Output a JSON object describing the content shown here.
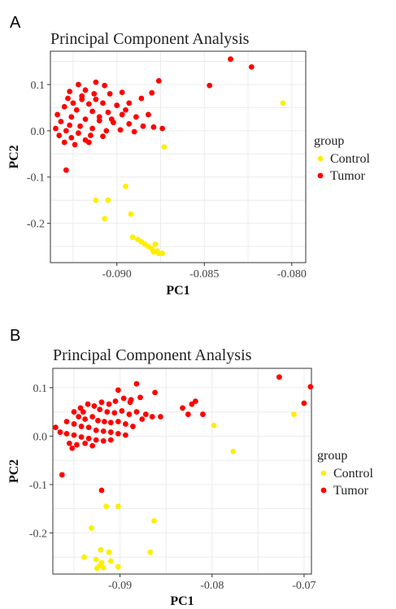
{
  "legend": {
    "title": "group",
    "entries": [
      {
        "label": "Control",
        "color": "#ffee00"
      },
      {
        "label": "Tumor",
        "color": "#ff0000"
      }
    ]
  },
  "chart_data": [
    {
      "panel": "A",
      "type": "scatter",
      "title": "Principal Component Analysis",
      "xlabel": "PC1",
      "ylabel": "PC2",
      "xlim": [
        -0.0938,
        -0.0792
      ],
      "ylim": [
        -0.285,
        0.172
      ],
      "xticks": [
        -0.09,
        -0.085,
        -0.08
      ],
      "xtick_labels": [
        "-0.090",
        "-0.085",
        "-0.080"
      ],
      "yticks": [
        0.1,
        0.0,
        -0.1,
        -0.2
      ],
      "ytick_labels": [
        "0.1",
        "0.0",
        "-0.1",
        "-0.2"
      ],
      "grid": true,
      "legend_position": "right",
      "series": [
        {
          "name": "Control",
          "color": "#ffee00",
          "points": [
            [
              -0.0805,
              0.06
            ],
            [
              -0.0873,
              -0.035
            ],
            [
              -0.0895,
              -0.12
            ],
            [
              -0.0912,
              -0.15
            ],
            [
              -0.0905,
              -0.15
            ],
            [
              -0.0907,
              -0.19
            ],
            [
              -0.0892,
              -0.18
            ],
            [
              -0.0891,
              -0.23
            ],
            [
              -0.0888,
              -0.235
            ],
            [
              -0.0886,
              -0.24
            ],
            [
              -0.0884,
              -0.245
            ],
            [
              -0.0882,
              -0.25
            ],
            [
              -0.0878,
              -0.245
            ],
            [
              -0.088,
              -0.255
            ],
            [
              -0.0877,
              -0.26
            ],
            [
              -0.0876,
              -0.265
            ],
            [
              -0.0874,
              -0.265
            ],
            [
              -0.0879,
              -0.262
            ]
          ]
        },
        {
          "name": "Tumor",
          "color": "#ff0000",
          "points": [
            [
              -0.0835,
              0.155
            ],
            [
              -0.0823,
              0.138
            ],
            [
              -0.0847,
              0.098
            ],
            [
              -0.0876,
              0.108
            ],
            [
              -0.0907,
              0.098
            ],
            [
              -0.0912,
              0.105
            ],
            [
              -0.0922,
              0.1
            ],
            [
              -0.0918,
              0.088
            ],
            [
              -0.0927,
              0.085
            ],
            [
              -0.092,
              0.075
            ],
            [
              -0.0913,
              0.08
            ],
            [
              -0.0904,
              0.08
            ],
            [
              -0.0897,
              0.083
            ],
            [
              -0.0886,
              0.07
            ],
            [
              -0.088,
              0.082
            ],
            [
              -0.0893,
              0.06
            ],
            [
              -0.0908,
              0.06
            ],
            [
              -0.0916,
              0.058
            ],
            [
              -0.0925,
              0.06
            ],
            [
              -0.093,
              0.052
            ],
            [
              -0.0923,
              0.045
            ],
            [
              -0.0914,
              0.042
            ],
            [
              -0.0905,
              0.04
            ],
            [
              -0.0897,
              0.035
            ],
            [
              -0.0889,
              0.03
            ],
            [
              -0.0882,
              0.035
            ],
            [
              -0.0934,
              0.035
            ],
            [
              -0.0926,
              0.03
            ],
            [
              -0.0918,
              0.025
            ],
            [
              -0.091,
              0.022
            ],
            [
              -0.0902,
              0.018
            ],
            [
              -0.0893,
              0.015
            ],
            [
              -0.0885,
              0.01
            ],
            [
              -0.0879,
              0.008
            ],
            [
              -0.0874,
              0.005
            ],
            [
              -0.0932,
              0.02
            ],
            [
              -0.0927,
              0.012
            ],
            [
              -0.0921,
              0.01
            ],
            [
              -0.0914,
              0.005
            ],
            [
              -0.0906,
              0.0
            ],
            [
              -0.0898,
              0.002
            ],
            [
              -0.089,
              -0.002
            ],
            [
              -0.0935,
              0.005
            ],
            [
              -0.0929,
              0.0
            ],
            [
              -0.0922,
              -0.005
            ],
            [
              -0.0915,
              -0.01
            ],
            [
              -0.0908,
              -0.012
            ],
            [
              -0.0933,
              -0.01
            ],
            [
              -0.0926,
              -0.015
            ],
            [
              -0.0918,
              -0.02
            ],
            [
              -0.093,
              -0.025
            ],
            [
              -0.0924,
              -0.03
            ],
            [
              -0.0916,
              -0.025
            ],
            [
              -0.091,
              0.03
            ],
            [
              -0.09,
              0.055
            ],
            [
              -0.0895,
              0.045
            ],
            [
              -0.092,
              0.068
            ],
            [
              -0.0928,
              0.07
            ],
            [
              -0.0912,
              0.068
            ],
            [
              -0.0903,
              0.025
            ],
            [
              -0.0929,
              -0.085
            ]
          ]
        }
      ]
    },
    {
      "panel": "B",
      "type": "scatter",
      "title": "Principal Component Analysis",
      "xlabel": "PC1",
      "ylabel": "PC2",
      "xlim": [
        -0.0973,
        -0.0692
      ],
      "ylim": [
        -0.285,
        0.14
      ],
      "xticks": [
        -0.09,
        -0.08,
        -0.07
      ],
      "xtick_labels": [
        "-0.09",
        "-0.08",
        "-0.07"
      ],
      "yticks": [
        0.1,
        0.0,
        -0.1,
        -0.2
      ],
      "ytick_labels": [
        "0.1",
        "0.0",
        "-0.1",
        "-0.2"
      ],
      "grid": true,
      "legend_position": "right",
      "series": [
        {
          "name": "Control",
          "color": "#ffee00",
          "points": [
            [
              -0.0711,
              0.045
            ],
            [
              -0.0798,
              0.022
            ],
            [
              -0.0777,
              -0.032
            ],
            [
              -0.0915,
              -0.145
            ],
            [
              -0.0902,
              -0.145
            ],
            [
              -0.0863,
              -0.175
            ],
            [
              -0.0931,
              -0.19
            ],
            [
              -0.0921,
              -0.235
            ],
            [
              -0.0912,
              -0.24
            ],
            [
              -0.0867,
              -0.24
            ],
            [
              -0.0939,
              -0.25
            ],
            [
              -0.0926,
              -0.255
            ],
            [
              -0.092,
              -0.262
            ],
            [
              -0.0922,
              -0.268
            ],
            [
              -0.0918,
              -0.272
            ],
            [
              -0.0925,
              -0.273
            ],
            [
              -0.0902,
              -0.27
            ],
            [
              -0.091,
              -0.258
            ]
          ]
        },
        {
          "name": "Tumor",
          "color": "#ff0000",
          "points": [
            [
              -0.0727,
              0.122
            ],
            [
              -0.0693,
              0.102
            ],
            [
              -0.07,
              0.068
            ],
            [
              -0.0818,
              0.072
            ],
            [
              -0.0822,
              0.066
            ],
            [
              -0.0832,
              0.058
            ],
            [
              -0.081,
              0.045
            ],
            [
              -0.0826,
              0.045
            ],
            [
              -0.0882,
              0.108
            ],
            [
              -0.0902,
              0.095
            ],
            [
              -0.0862,
              0.09
            ],
            [
              -0.0878,
              0.08
            ],
            [
              -0.0889,
              0.07
            ],
            [
              -0.0896,
              0.078
            ],
            [
              -0.0905,
              0.072
            ],
            [
              -0.0912,
              0.066
            ],
            [
              -0.092,
              0.07
            ],
            [
              -0.0928,
              0.062
            ],
            [
              -0.0935,
              0.066
            ],
            [
              -0.0943,
              0.058
            ],
            [
              -0.095,
              0.05
            ],
            [
              -0.0922,
              0.055
            ],
            [
              -0.0914,
              0.05
            ],
            [
              -0.0906,
              0.048
            ],
            [
              -0.0898,
              0.052
            ],
            [
              -0.089,
              0.045
            ],
            [
              -0.0882,
              0.05
            ],
            [
              -0.0872,
              0.045
            ],
            [
              -0.0865,
              0.04
            ],
            [
              -0.0856,
              0.04
            ],
            [
              -0.0945,
              0.04
            ],
            [
              -0.0938,
              0.035
            ],
            [
              -0.093,
              0.04
            ],
            [
              -0.0924,
              0.032
            ],
            [
              -0.0917,
              0.03
            ],
            [
              -0.091,
              0.028
            ],
            [
              -0.0902,
              0.03
            ],
            [
              -0.0894,
              0.025
            ],
            [
              -0.0886,
              0.02
            ],
            [
              -0.0958,
              0.03
            ],
            [
              -0.095,
              0.025
            ],
            [
              -0.0942,
              0.02
            ],
            [
              -0.0934,
              0.018
            ],
            [
              -0.0926,
              0.012
            ],
            [
              -0.0918,
              0.01
            ],
            [
              -0.091,
              0.008
            ],
            [
              -0.0902,
              0.005
            ],
            [
              -0.0894,
              0.002
            ],
            [
              -0.0965,
              0.008
            ],
            [
              -0.0958,
              0.005
            ],
            [
              -0.095,
              0.002
            ],
            [
              -0.0942,
              -0.002
            ],
            [
              -0.0934,
              -0.005
            ],
            [
              -0.0926,
              -0.008
            ],
            [
              -0.0918,
              -0.01
            ],
            [
              -0.091,
              -0.008
            ],
            [
              -0.0955,
              -0.015
            ],
            [
              -0.0947,
              -0.018
            ],
            [
              -0.0938,
              -0.015
            ],
            [
              -0.093,
              -0.02
            ],
            [
              -0.0952,
              -0.025
            ],
            [
              -0.097,
              0.018
            ],
            [
              -0.0888,
              0.075
            ],
            [
              -0.0876,
              0.035
            ],
            [
              -0.094,
              0.05
            ],
            [
              -0.0963,
              -0.08
            ],
            [
              -0.092,
              -0.112
            ]
          ]
        }
      ]
    }
  ]
}
